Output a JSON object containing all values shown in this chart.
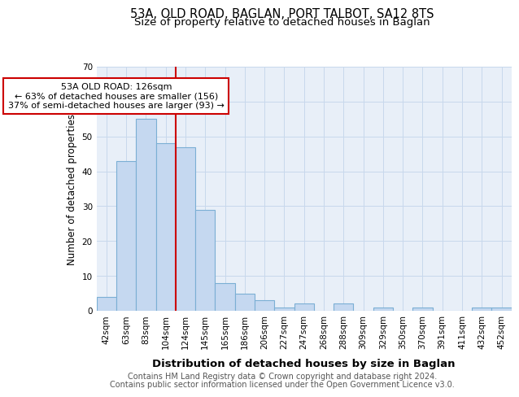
{
  "title": "53A, OLD ROAD, BAGLAN, PORT TALBOT, SA12 8TS",
  "subtitle": "Size of property relative to detached houses in Baglan",
  "xlabel": "Distribution of detached houses by size in Baglan",
  "ylabel": "Number of detached properties",
  "footer_line1": "Contains HM Land Registry data © Crown copyright and database right 2024.",
  "footer_line2": "Contains public sector information licensed under the Open Government Licence v3.0.",
  "categories": [
    "42sqm",
    "63sqm",
    "83sqm",
    "104sqm",
    "124sqm",
    "145sqm",
    "165sqm",
    "186sqm",
    "206sqm",
    "227sqm",
    "247sqm",
    "268sqm",
    "288sqm",
    "309sqm",
    "329sqm",
    "350sqm",
    "370sqm",
    "391sqm",
    "411sqm",
    "432sqm",
    "452sqm"
  ],
  "values": [
    4,
    43,
    55,
    48,
    47,
    29,
    8,
    5,
    3,
    1,
    2,
    0,
    2,
    0,
    1,
    0,
    1,
    0,
    0,
    1,
    1
  ],
  "bar_color": "#c5d8f0",
  "bar_edge_color": "#7bafd4",
  "vline_x_index": 4,
  "vline_color": "#cc0000",
  "annotation_text": "53A OLD ROAD: 126sqm\n← 63% of detached houses are smaller (156)\n37% of semi-detached houses are larger (93) →",
  "annotation_box_facecolor": "#ffffff",
  "annotation_box_edgecolor": "#cc0000",
  "ylim": [
    0,
    70
  ],
  "yticks": [
    0,
    10,
    20,
    30,
    40,
    50,
    60,
    70
  ],
  "grid_color": "#c8d8ec",
  "bg_color": "#e8eff8",
  "title_fontsize": 10.5,
  "subtitle_fontsize": 9.5,
  "xlabel_fontsize": 9.5,
  "ylabel_fontsize": 8.5,
  "tick_fontsize": 7.5,
  "footer_fontsize": 7.0,
  "footer_color": "#555555"
}
